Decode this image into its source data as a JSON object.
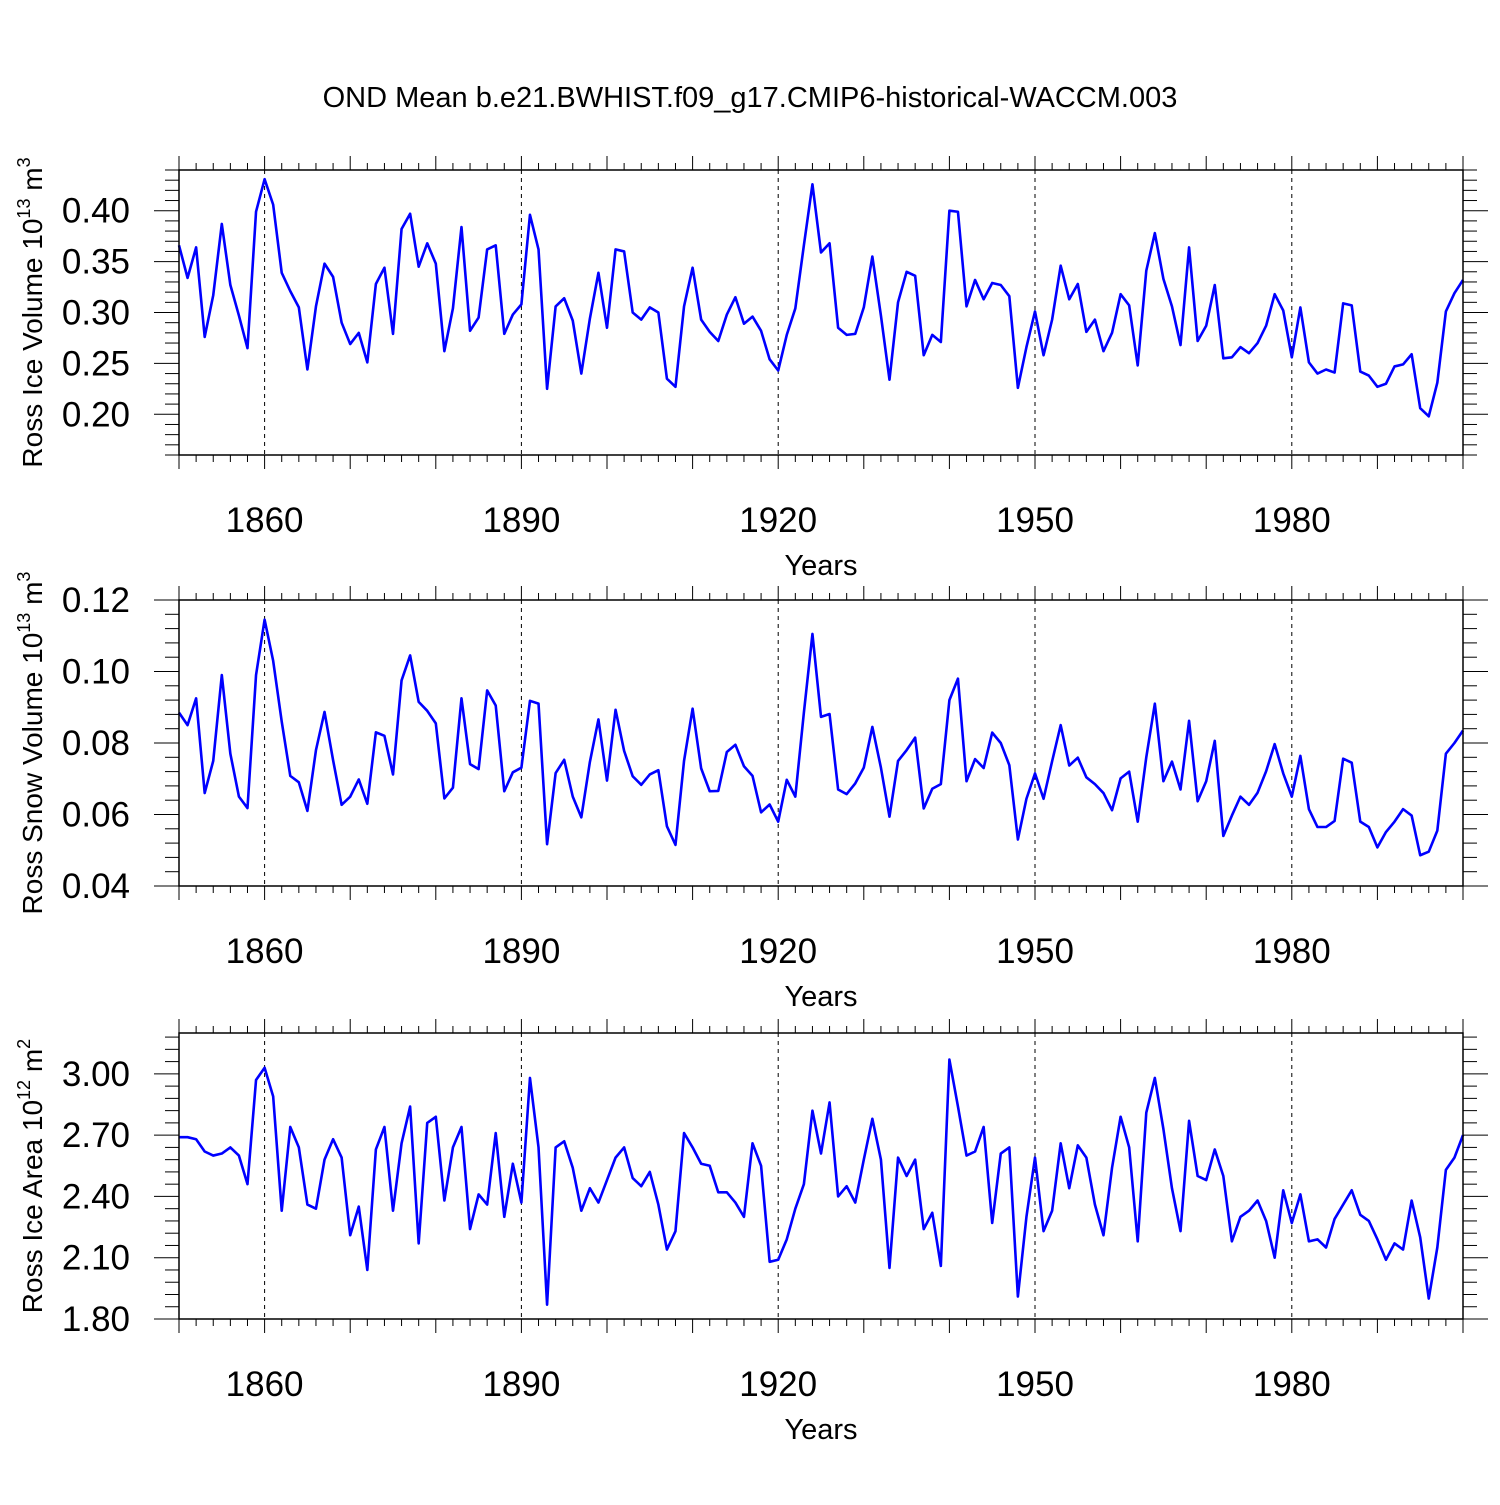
{
  "figure": {
    "title": "OND Mean b.e21.BWHIST.f09_g17.CMIP6-historical-WACCM.003",
    "line_color": "#0000ff",
    "grid_color": "#000000"
  },
  "chart_data": [
    {
      "type": "line",
      "id": "ice-volume",
      "ylabel_main": "Ross Ice Volume 10",
      "ylabel_sup": "13",
      "ylabel_unit": " m",
      "ylabel_unit_sup": "3",
      "xlabel": "Years",
      "xlim": [
        1850,
        2000
      ],
      "ylim": [
        0.16,
        0.44
      ],
      "yticks": [
        0.2,
        0.25,
        0.3,
        0.35,
        0.4
      ],
      "ytick_labels": [
        "0.20",
        "0.25",
        "0.30",
        "0.35",
        "0.40"
      ],
      "yminor_step": 0.01,
      "xticks": [
        1860,
        1890,
        1920,
        1950,
        1980
      ],
      "xtick_labels": [
        "1860",
        "1890",
        "1920",
        "1950",
        "1980"
      ],
      "grid_x": [
        1860,
        1890,
        1920,
        1950,
        1980
      ],
      "x_start": 1850,
      "series": [
        {
          "name": "Ross Ice Volume",
          "values": [
            0.366,
            0.334,
            0.364,
            0.276,
            0.317,
            0.387,
            0.327,
            0.297,
            0.265,
            0.399,
            0.431,
            0.406,
            0.339,
            0.321,
            0.305,
            0.244,
            0.306,
            0.348,
            0.335,
            0.29,
            0.269,
            0.28,
            0.251,
            0.328,
            0.344,
            0.279,
            0.382,
            0.397,
            0.345,
            0.368,
            0.348,
            0.262,
            0.304,
            0.384,
            0.282,
            0.295,
            0.362,
            0.366,
            0.279,
            0.298,
            0.308,
            0.396,
            0.362,
            0.225,
            0.306,
            0.314,
            0.292,
            0.24,
            0.294,
            0.339,
            0.285,
            0.362,
            0.36,
            0.3,
            0.293,
            0.305,
            0.3,
            0.235,
            0.227,
            0.306,
            0.344,
            0.293,
            0.281,
            0.272,
            0.298,
            0.315,
            0.289,
            0.296,
            0.282,
            0.254,
            0.243,
            0.278,
            0.304,
            0.366,
            0.426,
            0.359,
            0.368,
            0.285,
            0.278,
            0.279,
            0.305,
            0.355,
            0.297,
            0.234,
            0.31,
            0.34,
            0.336,
            0.258,
            0.278,
            0.271,
            0.4,
            0.399,
            0.306,
            0.332,
            0.313,
            0.329,
            0.327,
            0.316,
            0.226,
            0.266,
            0.301,
            0.258,
            0.293,
            0.346,
            0.313,
            0.328,
            0.281,
            0.293,
            0.262,
            0.28,
            0.318,
            0.307,
            0.248,
            0.341,
            0.378,
            0.333,
            0.306,
            0.268,
            0.364,
            0.272,
            0.287,
            0.327,
            0.255,
            0.256,
            0.266,
            0.26,
            0.27,
            0.287,
            0.318,
            0.302,
            0.256,
            0.305,
            0.251,
            0.24,
            0.244,
            0.241,
            0.309,
            0.307,
            0.242,
            0.238,
            0.227,
            0.23,
            0.247,
            0.249,
            0.259,
            0.206,
            0.198,
            0.231,
            0.301,
            0.319,
            0.332
          ]
        }
      ]
    },
    {
      "type": "line",
      "id": "snow-volume",
      "ylabel_main": "Ross Snow Volume 10",
      "ylabel_sup": "13",
      "ylabel_unit": " m",
      "ylabel_unit_sup": "3",
      "xlabel": "Years",
      "xlim": [
        1850,
        2000
      ],
      "ylim": [
        0.04,
        0.12
      ],
      "yticks": [
        0.04,
        0.06,
        0.08,
        0.1,
        0.12
      ],
      "ytick_labels": [
        "0.04",
        "0.06",
        "0.08",
        "0.10",
        "0.12"
      ],
      "yminor_step": 0.004,
      "xticks": [
        1860,
        1890,
        1920,
        1950,
        1980
      ],
      "xtick_labels": [
        "1860",
        "1890",
        "1920",
        "1950",
        "1980"
      ],
      "grid_x": [
        1860,
        1890,
        1920,
        1950,
        1980
      ],
      "x_start": 1850,
      "series": [
        {
          "name": "Ross Snow Volume",
          "values": [
            0.0885,
            0.085,
            0.0925,
            0.066,
            0.075,
            0.099,
            0.077,
            0.065,
            0.0618,
            0.099,
            0.1145,
            0.103,
            0.086,
            0.0708,
            0.069,
            0.061,
            0.078,
            0.0887,
            0.0752,
            0.0627,
            0.065,
            0.0698,
            0.063,
            0.083,
            0.082,
            0.0712,
            0.0975,
            0.1045,
            0.0915,
            0.089,
            0.0855,
            0.0645,
            0.0675,
            0.0925,
            0.0741,
            0.0727,
            0.0947,
            0.0905,
            0.0665,
            0.0718,
            0.0731,
            0.0918,
            0.091,
            0.0517,
            0.0716,
            0.0753,
            0.065,
            0.0592,
            0.0747,
            0.0866,
            0.0695,
            0.0893,
            0.0778,
            0.0707,
            0.0683,
            0.0712,
            0.0724,
            0.0567,
            0.0515,
            0.075,
            0.0896,
            0.0729,
            0.0665,
            0.0666,
            0.0775,
            0.0795,
            0.0735,
            0.0708,
            0.0606,
            0.0628,
            0.058,
            0.0697,
            0.065,
            0.0885,
            0.1105,
            0.0873,
            0.0881,
            0.067,
            0.0657,
            0.0687,
            0.0731,
            0.0845,
            0.0731,
            0.0594,
            0.075,
            0.078,
            0.0815,
            0.0617,
            0.0672,
            0.0685,
            0.092,
            0.098,
            0.0693,
            0.0755,
            0.073,
            0.0829,
            0.08,
            0.0738,
            0.053,
            0.0644,
            0.0715,
            0.0644,
            0.0749,
            0.085,
            0.0737,
            0.0759,
            0.0704,
            0.0685,
            0.066,
            0.0612,
            0.0701,
            0.072,
            0.058,
            0.076,
            0.091,
            0.0693,
            0.0748,
            0.067,
            0.0862,
            0.0637,
            0.0693,
            0.0806,
            0.054,
            0.0597,
            0.065,
            0.0627,
            0.0661,
            0.0721,
            0.0797,
            0.0715,
            0.065,
            0.0764,
            0.0615,
            0.0565,
            0.0565,
            0.0582,
            0.0756,
            0.0745,
            0.058,
            0.0565,
            0.0508,
            0.0551,
            0.058,
            0.0615,
            0.0597,
            0.0486,
            0.0496,
            0.0555,
            0.077,
            0.08,
            0.0835
          ]
        }
      ]
    },
    {
      "type": "line",
      "id": "ice-area",
      "ylabel_main": "Ross Ice Area 10",
      "ylabel_sup": "12",
      "ylabel_unit": " m",
      "ylabel_unit_sup": "2",
      "xlabel": "Years",
      "xlim": [
        1850,
        2000
      ],
      "ylim": [
        1.8,
        3.2
      ],
      "yticks": [
        1.8,
        2.1,
        2.4,
        2.7,
        3.0
      ],
      "ytick_labels": [
        "1.80",
        "2.10",
        "2.40",
        "2.70",
        "3.00"
      ],
      "yminor_step": 0.06,
      "xticks": [
        1860,
        1890,
        1920,
        1950,
        1980
      ],
      "xtick_labels": [
        "1860",
        "1890",
        "1920",
        "1950",
        "1980"
      ],
      "grid_x": [
        1860,
        1890,
        1920,
        1950,
        1980
      ],
      "x_start": 1850,
      "series": [
        {
          "name": "Ross Ice Area",
          "values": [
            2.69,
            2.69,
            2.68,
            2.62,
            2.6,
            2.61,
            2.64,
            2.6,
            2.46,
            2.97,
            3.03,
            2.89,
            2.33,
            2.74,
            2.64,
            2.36,
            2.34,
            2.58,
            2.68,
            2.59,
            2.21,
            2.35,
            2.04,
            2.63,
            2.74,
            2.33,
            2.66,
            2.84,
            2.17,
            2.76,
            2.79,
            2.38,
            2.64,
            2.74,
            2.24,
            2.41,
            2.36,
            2.71,
            2.3,
            2.56,
            2.37,
            2.98,
            2.64,
            1.87,
            2.64,
            2.67,
            2.54,
            2.33,
            2.44,
            2.37,
            2.48,
            2.59,
            2.64,
            2.49,
            2.45,
            2.52,
            2.36,
            2.14,
            2.23,
            2.71,
            2.64,
            2.56,
            2.55,
            2.42,
            2.42,
            2.37,
            2.3,
            2.66,
            2.55,
            2.08,
            2.09,
            2.19,
            2.34,
            2.46,
            2.82,
            2.61,
            2.86,
            2.4,
            2.45,
            2.37,
            2.58,
            2.78,
            2.58,
            2.05,
            2.59,
            2.5,
            2.58,
            2.24,
            2.32,
            2.06,
            3.07,
            2.84,
            2.6,
            2.62,
            2.74,
            2.27,
            2.61,
            2.64,
            1.91,
            2.3,
            2.59,
            2.23,
            2.33,
            2.66,
            2.44,
            2.65,
            2.59,
            2.36,
            2.21,
            2.54,
            2.79,
            2.64,
            2.18,
            2.81,
            2.98,
            2.73,
            2.44,
            2.23,
            2.77,
            2.5,
            2.48,
            2.63,
            2.5,
            2.18,
            2.3,
            2.33,
            2.38,
            2.28,
            2.1,
            2.43,
            2.27,
            2.41,
            2.18,
            2.19,
            2.15,
            2.29,
            2.36,
            2.43,
            2.31,
            2.28,
            2.19,
            2.09,
            2.17,
            2.14,
            2.38,
            2.2,
            1.9,
            2.15,
            2.53,
            2.59,
            2.7
          ]
        }
      ]
    }
  ]
}
